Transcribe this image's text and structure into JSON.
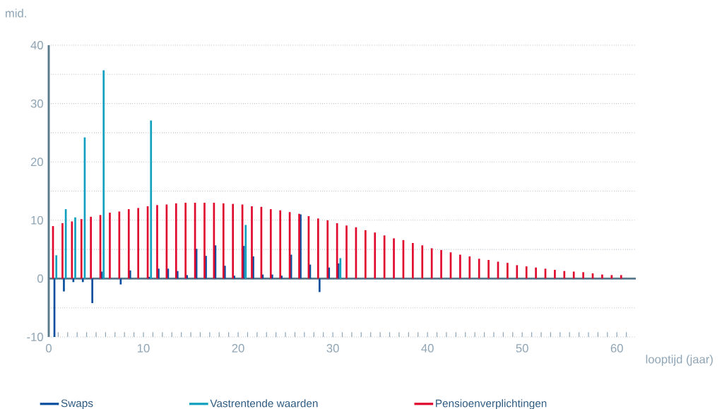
{
  "chart_data": {
    "type": "bar",
    "xlabel": "looptijd (jaar)",
    "ylabel": "mid.",
    "x": [
      0.5,
      1.5,
      2.5,
      3.5,
      4.5,
      5.5,
      6.5,
      7.5,
      8.5,
      9.5,
      10.5,
      11.5,
      12.5,
      13.5,
      14.5,
      15.5,
      16.5,
      17.5,
      18.5,
      19.5,
      20.5,
      21.5,
      22.5,
      23.5,
      24.5,
      25.5,
      26.5,
      27.5,
      28.5,
      29.5,
      30.5,
      31.5,
      32.5,
      33.5,
      34.5,
      35.5,
      36.5,
      37.5,
      38.5,
      39.5,
      40.5,
      41.5,
      42.5,
      43.5,
      44.5,
      45.5,
      46.5,
      47.5,
      48.5,
      49.5,
      50.5,
      51.5,
      52.5,
      53.5,
      54.5,
      55.5,
      56.5,
      57.5,
      58.5,
      59.5,
      60.5
    ],
    "series": [
      {
        "name": "Swaps",
        "color": "#0a4f9e",
        "values": [
          -10,
          -2.2,
          -0.6,
          -0.6,
          -4.2,
          1.2,
          null,
          -1.0,
          1.4,
          null,
          0.3,
          1.7,
          1.7,
          1.3,
          0.6,
          5.1,
          3.9,
          5.7,
          2.2,
          0.5,
          5.6,
          3.8,
          0.7,
          0.7,
          0.5,
          4.1,
          11.0,
          2.4,
          -2.3,
          1.9,
          2.6,
          null,
          null,
          null,
          null,
          null,
          null,
          null,
          null,
          null,
          null,
          null,
          null,
          null,
          null,
          null,
          null,
          null,
          null,
          null,
          null,
          null,
          null,
          null,
          null,
          null,
          null,
          null,
          null,
          null,
          null
        ]
      },
      {
        "name": "Vastrentende waarden",
        "color": "#0fa0bf",
        "values": [
          4.0,
          11.9,
          10.5,
          24.2,
          null,
          35.7,
          null,
          null,
          null,
          null,
          27.1,
          null,
          null,
          null,
          null,
          null,
          null,
          null,
          null,
          null,
          9.2,
          null,
          null,
          null,
          null,
          null,
          null,
          null,
          null,
          null,
          3.5,
          null,
          null,
          null,
          null,
          null,
          null,
          null,
          null,
          null,
          null,
          null,
          null,
          null,
          null,
          null,
          null,
          null,
          null,
          null,
          null,
          null,
          null,
          null,
          null,
          null,
          null,
          null,
          null,
          null,
          null
        ]
      },
      {
        "name": "Pensioenverplichtingen",
        "color": "#e0082d",
        "values": [
          9.0,
          9.5,
          9.8,
          10.2,
          10.6,
          10.9,
          11.3,
          11.5,
          11.9,
          12.1,
          12.4,
          12.6,
          12.7,
          12.9,
          13.0,
          13.0,
          13.0,
          13.0,
          12.9,
          12.8,
          12.7,
          12.4,
          12.3,
          11.9,
          11.7,
          11.4,
          11.1,
          10.7,
          10.3,
          10.0,
          9.5,
          9.1,
          8.8,
          8.3,
          7.9,
          7.4,
          6.9,
          6.6,
          6.1,
          5.7,
          5.2,
          4.9,
          4.5,
          4.1,
          3.8,
          3.4,
          3.2,
          2.9,
          2.7,
          2.3,
          2.1,
          1.9,
          1.7,
          1.5,
          1.3,
          1.2,
          1.1,
          0.9,
          0.7,
          0.6,
          0.6
        ]
      }
    ],
    "xlim": [
      0,
      62
    ],
    "ylim": [
      -10,
      40
    ],
    "xticks": [
      0,
      {
        "value": 1,
        "label": null
      },
      {
        "value": 2,
        "label": null
      },
      {
        "value": 3,
        "label": null
      },
      {
        "value": 4,
        "label": null
      },
      {
        "value": 5,
        "label": null
      },
      {
        "value": 6,
        "label": null
      },
      {
        "value": 7,
        "label": null
      },
      {
        "value": 8,
        "label": null
      },
      {
        "value": 9,
        "label": null
      },
      10,
      {
        "value": 11,
        "label": null
      },
      {
        "value": 12,
        "label": null
      },
      {
        "value": 13,
        "label": null
      },
      {
        "value": 14,
        "label": null
      },
      {
        "value": 15,
        "label": null
      },
      {
        "value": 16,
        "label": null
      },
      {
        "value": 17,
        "label": null
      },
      {
        "value": 18,
        "label": null
      },
      {
        "value": 19,
        "label": null
      },
      20,
      {
        "value": 21,
        "label": null
      },
      {
        "value": 22,
        "label": null
      },
      {
        "value": 23,
        "label": null
      },
      {
        "value": 24,
        "label": null
      },
      {
        "value": 25,
        "label": null
      },
      {
        "value": 26,
        "label": null
      },
      {
        "value": 27,
        "label": null
      },
      {
        "value": 28,
        "label": null
      },
      {
        "value": 29,
        "label": null
      },
      30,
      {
        "value": 31,
        "label": null
      },
      {
        "value": 32,
        "label": null
      },
      {
        "value": 33,
        "label": null
      },
      {
        "value": 34,
        "label": null
      },
      {
        "value": 35,
        "label": null
      },
      {
        "value": 36,
        "label": null
      },
      {
        "value": 37,
        "label": null
      },
      {
        "value": 38,
        "label": null
      },
      {
        "value": 39,
        "label": null
      },
      40,
      {
        "value": 41,
        "label": null
      },
      {
        "value": 42,
        "label": null
      },
      {
        "value": 43,
        "label": null
      },
      {
        "value": 44,
        "label": null
      },
      {
        "value": 45,
        "label": null
      },
      {
        "value": 46,
        "label": null
      },
      {
        "value": 47,
        "label": null
      },
      {
        "value": 48,
        "label": null
      },
      {
        "value": 49,
        "label": null
      },
      50,
      {
        "value": 51,
        "label": null
      },
      {
        "value": 52,
        "label": null
      },
      {
        "value": 53,
        "label": null
      },
      {
        "value": 54,
        "label": null
      },
      {
        "value": 55,
        "label": null
      },
      {
        "value": 56,
        "label": null
      },
      {
        "value": 57,
        "label": null
      },
      {
        "value": 58,
        "label": null
      },
      {
        "value": 59,
        "label": null
      },
      60,
      {
        "value": 61,
        "label": null
      }
    ],
    "yticks": [
      -10,
      {
        "value": -5,
        "label": null
      },
      0,
      {
        "value": 5,
        "label": null
      },
      10,
      {
        "value": 15,
        "label": null
      },
      20,
      {
        "value": 25,
        "label": null
      },
      30,
      {
        "value": 35,
        "label": null
      },
      40
    ],
    "ref_lines": [
      {
        "axis": "y",
        "value": 0,
        "color": "#5a7a8c"
      }
    ],
    "grid": "y",
    "legend": "bottom"
  }
}
